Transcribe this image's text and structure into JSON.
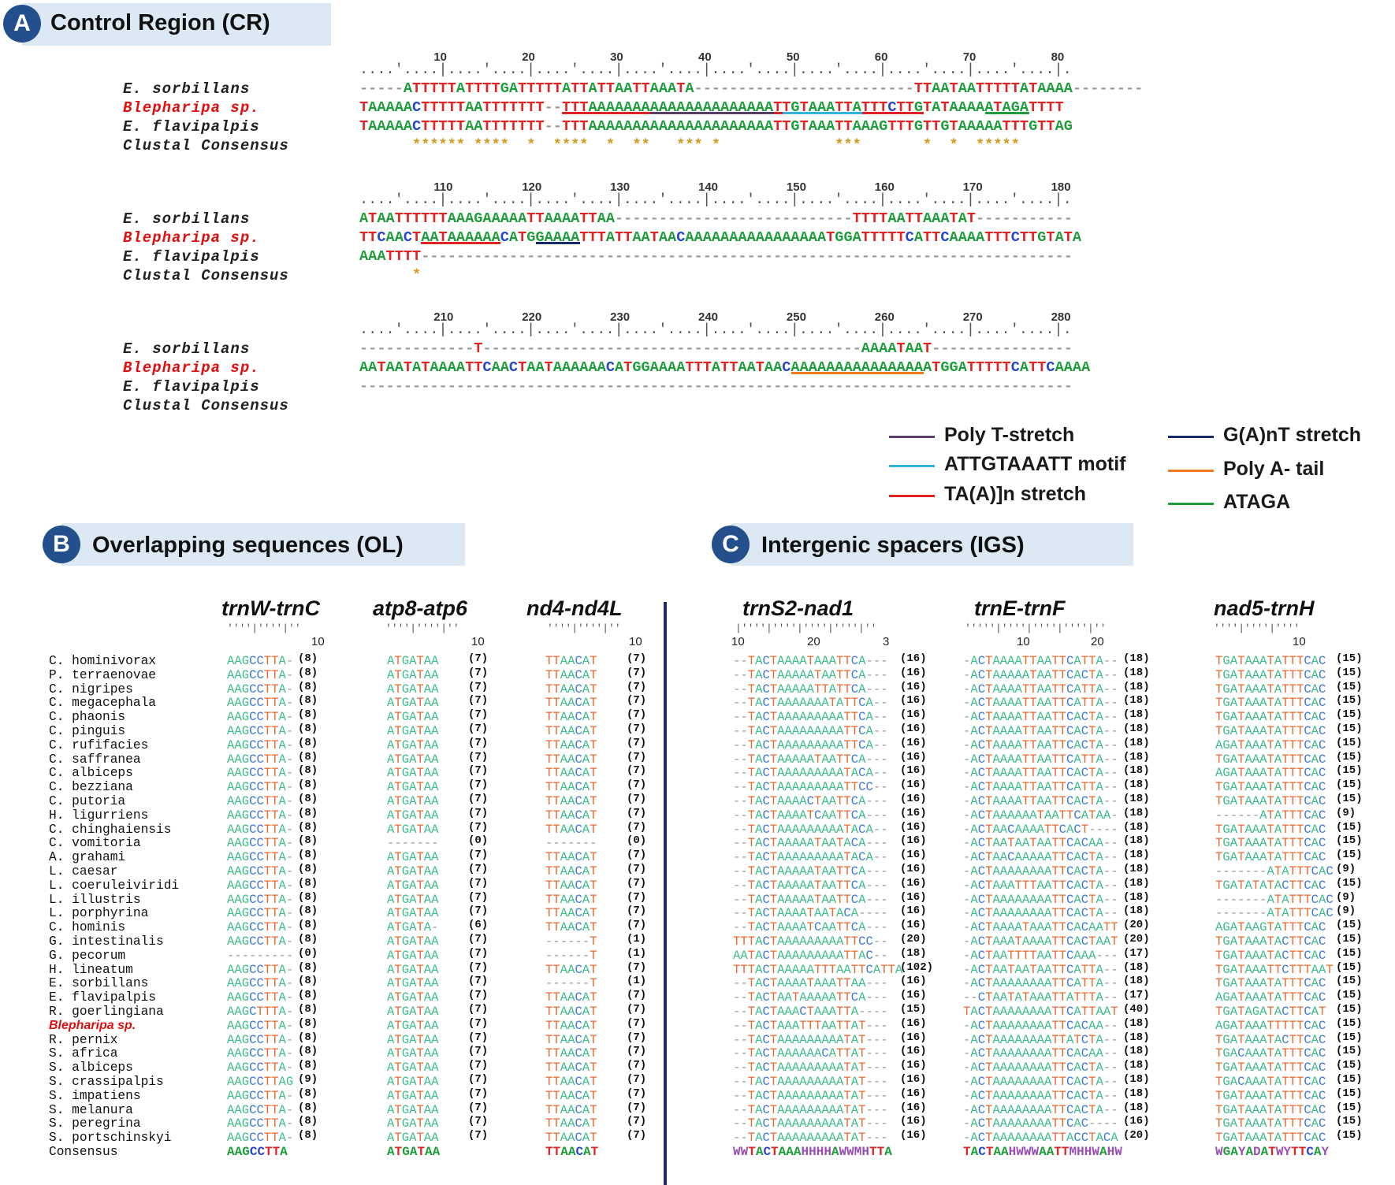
{
  "panelA": {
    "letter": "A",
    "title": "Control Region (CR)",
    "blocks": [
      {
        "ticks": [
          "10",
          "20",
          "30",
          "40",
          "50",
          "60",
          "70",
          "80"
        ],
        "rows": [
          {
            "name": "E. sorbillans",
            "seq": "-----ATTTTTATTTTGATTTTTATTATTAATTAAATA-------------------------TTAATAATTTTTATAAAA--------"
          },
          {
            "name": "Blepharipa sp.",
            "seq": "TAAAAACTTTTTAATTTTTTT--TTTAAAAAAAAAAAAAAAAAAAAATTGTAAATTATTTCTTGTATAAAAATAGATTTT"
          },
          {
            "name": "E. flavipalpis",
            "seq": "TAAAAACTTTTTAATTTTTTT--TTTAAAAAAAAAAAAAAAAAAAAATTGTAAATTAAAGTTTGTTGTAAAAATTTGTTAG"
          },
          {
            "name": "Clustal Consensus",
            "seq": "      ****** ****  *  ****  *  **   *** *             ***       *  *  *****      "
          }
        ]
      },
      {
        "ticks": [
          "110",
          "120",
          "130",
          "140",
          "150",
          "160",
          "170",
          "180"
        ],
        "rows": [
          {
            "name": "E. sorbillans",
            "seq": "ATAATTTTTTAAAGAAAAATTAAAATTAA---------------------------TTTTAATTAAATAT-----------"
          },
          {
            "name": "Blepharipa sp.",
            "seq": "TTCAACTAATAAAAAACATGGAAAATTTATTAATAACAAAAAAAAAAAAAAAATGGATTTTTCATTCAAAATTTCTTGTATA"
          },
          {
            "name": "E. flavipalpis",
            "seq": "AAATTTT--------------------------------------------------------------------------"
          },
          {
            "name": "Clustal Consensus",
            "seq": "      *                                                                          "
          }
        ]
      },
      {
        "ticks": [
          "210",
          "220",
          "230",
          "240",
          "250",
          "260",
          "270",
          "280"
        ],
        "rows": [
          {
            "name": "E. sorbillans",
            "seq": "-------------T-------------------------------------------AAAATAAT----------------"
          },
          {
            "name": "Blepharipa sp.",
            "seq": "AATAATATAAAATTCAACTAATAAAAAACATGGAAAATTTATTAATAACAAAAAAAAAAAAAAAATGGATTTTTCATTCAAAA"
          },
          {
            "name": "E. flavipalpis",
            "seq": "---------------------------------------------------------------------------------"
          },
          {
            "name": "Clustal Consensus",
            "seq": "                                                                                 "
          }
        ]
      }
    ],
    "legend": [
      {
        "label": "Poly T-stretch",
        "color": "#5a3f6e"
      },
      {
        "label": "ATTGTAAATT motif",
        "color": "#33b1e0"
      },
      {
        "label": "TA(A)]n stretch",
        "color": "#e02424"
      },
      {
        "label": "G(A)nT stretch",
        "color": "#1b2a6b"
      },
      {
        "label": "Poly A- tail",
        "color": "#f07b1e"
      },
      {
        "label": "ATAGA",
        "color": "#1e9e3a"
      }
    ]
  },
  "panelB": {
    "letter": "B",
    "title": "Overlapping sequences (OL)",
    "genes": [
      "trnW-trnC",
      "atp8-atp6",
      "nd4-nd4L"
    ],
    "tick": "10",
    "species": [
      "C. hominivorax",
      "P. terraenovae",
      "C. nigripes",
      "C. megacephala",
      "C. phaonis",
      "C. pinguis",
      "C. rufifacies",
      "C. saffranea",
      "C. albiceps",
      "C. bezziana",
      "C. putoria",
      "H. ligurriens",
      "C. chinghaiensis",
      "C. vomitoria",
      "A. grahami",
      "L. caesar",
      "L. coeruleiviridi",
      "L. illustris",
      "L. porphyrina",
      "C. hominis",
      "G. intestinalis",
      "G. pecorum",
      "H. lineatum",
      "E. sorbillans",
      "E. flavipalpis",
      "R. goerlingiana",
      "Blepharipa sp.",
      "R. pernix",
      "S. africa",
      "S. albiceps",
      "S. crassipalpis",
      "S. impatiens",
      "S. melanura",
      "S. peregrina",
      "S. portschinskyi"
    ],
    "consensus_label": "Consensus",
    "col1": {
      "seqs": [
        "AAGCCTTA-",
        "AAGCCTTA-",
        "AAGCCTTA-",
        "AAGCCTTA-",
        "AAGCCTTA-",
        "AAGCCTTA-",
        "AAGCCTTA-",
        "AAGCCTTA-",
        "AAGCCTTA-",
        "AAGCCTTA-",
        "AAGCCTTA-",
        "AAGCCTTA-",
        "AAGCCTTA-",
        "AAGCCTTA-",
        "AAGCCTTA-",
        "AAGCCTTA-",
        "AAGCCTTA-",
        "AAGCCTTA-",
        "AAGCCTTA-",
        "AAGCCTTA-",
        "AAGCCTTA-",
        "---------",
        "AAGCCTTA-",
        "AAGCCTTA-",
        "AAGCCTTA-",
        "AAGCTTTA-",
        "AAGCCTTA-",
        "AAGCCTTA-",
        "AAGCCTTA-",
        "AAGCCTTA-",
        "AAGCCTTAG",
        "AAGCCTTA-",
        "AAGCCTTA-",
        "AAGCCTTA-",
        "AAGCCTTA-"
      ],
      "lens": [
        "(8)",
        "(8)",
        "(8)",
        "(8)",
        "(8)",
        "(8)",
        "(8)",
        "(8)",
        "(8)",
        "(8)",
        "(8)",
        "(8)",
        "(8)",
        "(8)",
        "(8)",
        "(8)",
        "(8)",
        "(8)",
        "(8)",
        "(8)",
        "(8)",
        "(0)",
        "(8)",
        "(8)",
        "(8)",
        "(8)",
        "(8)",
        "(8)",
        "(8)",
        "(8)",
        "(9)",
        "(8)",
        "(8)",
        "(8)",
        "(8)"
      ],
      "consensus": "AAGCCTTA"
    },
    "col2": {
      "seqs": [
        "ATGATAA",
        "ATGATAA",
        "ATGATAA",
        "ATGATAA",
        "ATGATAA",
        "ATGATAA",
        "ATGATAA",
        "ATGATAA",
        "ATGATAA",
        "ATGATAA",
        "ATGATAA",
        "ATGATAA",
        "ATGATAA",
        "-------",
        "ATGATAA",
        "ATGATAA",
        "ATGATAA",
        "ATGATAA",
        "ATGATAA",
        "ATGATA-",
        "ATGATAA",
        "ATGATAA",
        "ATGATAA",
        "ATGATAA",
        "ATGATAA",
        "ATGATAA",
        "ATGATAA",
        "ATGATAA",
        "ATGATAA",
        "ATGATAA",
        "ATGATAA",
        "ATGATAA",
        "ATGATAA",
        "ATGATAA",
        "ATGATAA"
      ],
      "lens": [
        "(7)",
        "(7)",
        "(7)",
        "(7)",
        "(7)",
        "(7)",
        "(7)",
        "(7)",
        "(7)",
        "(7)",
        "(7)",
        "(7)",
        "(7)",
        "(0)",
        "(7)",
        "(7)",
        "(7)",
        "(7)",
        "(7)",
        "(6)",
        "(7)",
        "(7)",
        "(7)",
        "(7)",
        "(7)",
        "(7)",
        "(7)",
        "(7)",
        "(7)",
        "(7)",
        "(7)",
        "(7)",
        "(7)",
        "(7)",
        "(7)"
      ],
      "consensus": "ATGATAA"
    },
    "col3": {
      "seqs": [
        "TTAACAT",
        "TTAACAT",
        "TTAACAT",
        "TTAACAT",
        "TTAACAT",
        "TTAACAT",
        "TTAACAT",
        "TTAACAT",
        "TTAACAT",
        "TTAACAT",
        "TTAACAT",
        "TTAACAT",
        "TTAACAT",
        "-------",
        "TTAACAT",
        "TTAACAT",
        "TTAACAT",
        "TTAACAT",
        "TTAACAT",
        "TTAACAT",
        "------T",
        "------T",
        "TTAACAT",
        "------T",
        "TTAACAT",
        "TTAACAT",
        "TTAACAT",
        "TTAACAT",
        "TTAACAT",
        "TTAACAT",
        "TTAACAT",
        "TTAACAT",
        "TTAACAT",
        "TTAACAT",
        "TTAACAT"
      ],
      "lens": [
        "(7)",
        "(7)",
        "(7)",
        "(7)",
        "(7)",
        "(7)",
        "(7)",
        "(7)",
        "(7)",
        "(7)",
        "(7)",
        "(7)",
        "(7)",
        "(0)",
        "(7)",
        "(7)",
        "(7)",
        "(7)",
        "(7)",
        "(7)",
        "(1)",
        "(1)",
        "(7)",
        "(1)",
        "(7)",
        "(7)",
        "(7)",
        "(7)",
        "(7)",
        "(7)",
        "(7)",
        "(7)",
        "(7)",
        "(7)",
        "(7)"
      ],
      "consensus": "TTAACAT"
    }
  },
  "panelC": {
    "letter": "C",
    "title": "Intergenic spacers (IGS)",
    "genes": [
      "trnS2-nad1",
      "trnE-trnF",
      "nad5-trnH"
    ],
    "ticks1": [
      "10",
      "20",
      "3"
    ],
    "ticks2": [
      "10",
      "20"
    ],
    "ticks3": [
      "10"
    ],
    "col1": {
      "seqs": [
        "--TACTAAAATAAATTCA---",
        "--TACTAAAAATAATTCA---",
        "--TACTAAAAATTATTCA---",
        "--TACTAAAAAAATATTCA--",
        "--TACTAAAAAAAAATTCA--",
        "--TACTAAAAAAAAATTCA--",
        "--TACTAAAAAAAAATTCA--",
        "--TACTAAAAATAATTCA---",
        "--TACTAAAAAAAAATACA--",
        "--TACTAAAAAAAAATTCC--",
        "--TACTAAAACTAATTCA---",
        "--TACTAAAATCAATTCA---",
        "--TACTAAAAAAAAATACA--",
        "--TACTAAAAATAATACA---",
        "--TACTAAAAAAAAATACA--",
        "--TACTAAAAATAATTCA---",
        "--TACTAAAAATAATTCA---",
        "--TACTAAAAATAATTCA---",
        "--TACTAAAATAATACA----",
        "--TACTAAAATCAATTCA---",
        "TTTACTAAAAAAAAATTCC--",
        "AATACTAAAAAAAAATTAC--",
        "TTTACTAAAAATTTAATTCATTA",
        "--TACTAAAATAAATTAA---",
        "--TACTAATAAAAATTCA---",
        "--TACTAAACTAAATTA----",
        "--TACTAAATTTAATTAT---",
        "--TACTAAAAAAAAATAT---",
        "--TACTAAAAAACATTAT---",
        "--TACTAAAAAAAAATAT---",
        "--TACTAAAAAAAAATAT---",
        "--TACTAAAAAAAAATAT---",
        "--TACTAAAAAAAAATAT---",
        "--TACTAAAAAAAAATAT---",
        "--TACTAAAAAAAAATAT---"
      ],
      "lens": [
        "(16)",
        "(16)",
        "(16)",
        "(16)",
        "(16)",
        "(16)",
        "(16)",
        "(16)",
        "(16)",
        "(16)",
        "(16)",
        "(16)",
        "(16)",
        "(16)",
        "(16)",
        "(16)",
        "(16)",
        "(16)",
        "(16)",
        "(16)",
        "(20)",
        "(18)",
        "(102)",
        "(16)",
        "(16)",
        "(15)",
        "(16)",
        "(16)",
        "(16)",
        "(16)",
        "(16)",
        "(16)",
        "(16)",
        "(16)",
        "(16)"
      ],
      "consensus": "WWTACTAAAHHHHAWWMHTTA"
    },
    "col2": {
      "seqs": [
        "-ACTAAAATTAATTCATTA--",
        "-ACTAAAAATAATTCACTA--",
        "-ACTAAAATTAATTCATTA--",
        "-ACTAAAATTAATTCATTA--",
        "-ACTAAAATTAATTCACTA--",
        "-ACTAAAATTAATTCACTA--",
        "-ACTAAAATTAATTCACTA--",
        "-ACTAAAATTAATTCATTA--",
        "-ACTAAAATTAATTCACTA--",
        "-ACTAAAATTAATTCATTA--",
        "-ACTAAAATTAATTCACTA--",
        "-ACTAAAAAATAATTCATAA-",
        "-ACTAACAAAATTCACT----",
        "-ACTAATAATAATTCACAA--",
        "-ACTAACAAAAATTCACTA--",
        "-ACTAAAAAAAATTCACTA--",
        "-ACTAAATTTAATTCACTA--",
        "-ACTAAAAAAAATTCACTA--",
        "-ACTAAAAAAAATTCACTA--",
        "-ACTAAAATAAATTCACAATT",
        "-ACTAAATAAAATTCACTAAT",
        "-ACTAATTTTAATTCAAA---",
        "-ACTAATAATAATTCATTA--",
        "-ACTAAAAAAAATTCATTA--",
        "--CTAATATAAATTATTTA--",
        "TACTAAAAAAAATTCATTAAT",
        "-ACTAAAAAAAATTCACAA--",
        "-ACTAAAAAAAATTATCTA--",
        "-ACTAAAAAAAATTCACAA--",
        "-ACTAAAAAAAATTCACTA--",
        "-ACTAAAAAAAATTCACTA--",
        "-ACTAAAAAAAATTCACTA--",
        "-ACTAAAAAAAATTCACTA--",
        "-ACTAAAAAAAATTCAC----",
        "-ACTAAAAAAAATTACCTACA"
      ],
      "lens": [
        "(18)",
        "(18)",
        "(18)",
        "(18)",
        "(18)",
        "(18)",
        "(18)",
        "(18)",
        "(18)",
        "(18)",
        "(18)",
        "(18)",
        "(18)",
        "(18)",
        "(18)",
        "(18)",
        "(18)",
        "(18)",
        "(18)",
        "(20)",
        "(20)",
        "(17)",
        "(18)",
        "(18)",
        "(17)",
        "(40)",
        "(18)",
        "(18)",
        "(18)",
        "(18)",
        "(18)",
        "(18)",
        "(18)",
        "(16)",
        "(20)"
      ],
      "consensus": "TACTAAHWWWAATTMHHWAHW"
    },
    "col3": {
      "seqs": [
        "TGATAAATATTTCAC",
        "TGATAAATATTTCAC",
        "TGATAAATATTTCAC",
        "TGATAAATATTTCAC",
        "TGATAAATATTTCAC",
        "TGATAAATATTTCAC",
        "AGATAAATATTTCAC",
        "TGATAAATATTTCAC",
        "AGATAAATATTTCAC",
        "TGATAAATATTTCAC",
        "TGATAAATATTTCAC",
        "------ATATTTCAC",
        "TGATAAATATTTCAC",
        "TGATAAATATTTCAC",
        "TGATAAATATTTCAC",
        "-------ATATTTCAC",
        "TGATATATACTTCAC",
        "-------ATATTTCAC",
        "-------ATATTTCAC",
        "AGATAAGTATTTCAC",
        "TGATAAATACTTCAC",
        "TGATAAATACTTCAC",
        "TGATAAATTCTTTAAT",
        "TGATAAATATTTCAC",
        "AGATAAATATTTCAC",
        "TGATAGATACTTCAT",
        "AGATAAATTTTTCAC",
        "TGATAAATACTTCAC",
        "TGACAAATATTTCAC",
        "TGATAAATATTTCAC",
        "TGACAAATATTTCAC",
        "TGATAAATATTTCAC",
        "TGATAAATATTTCAC",
        "TGATAAATATTTCAC",
        "TGATAAATATTTCAC"
      ],
      "lens": [
        "(15)",
        "(15)",
        "(15)",
        "(15)",
        "(15)",
        "(15)",
        "(15)",
        "(15)",
        "(15)",
        "(15)",
        "(15)",
        "(9)",
        "(15)",
        "(15)",
        "(15)",
        "(9)",
        "(15)",
        "(9)",
        "(9)",
        "(15)",
        "(15)",
        "(15)",
        "(15)",
        "(15)",
        "(15)",
        "(15)",
        "(15)",
        "(15)",
        "(15)",
        "(15)",
        "(15)",
        "(15)",
        "(15)",
        "(15)",
        "(15)"
      ],
      "consensus": "WGAYADATWYTTCAY"
    }
  },
  "colors": {
    "A": "#1e9e3a",
    "T": "#e02424",
    "C": "#2846c8",
    "G": "#1e9e3a",
    "gap": "#888888",
    "softA": "#3dbd8a",
    "softT": "#e8692e",
    "softC": "#3d77d6",
    "softG": "#3dbd8a",
    "ambig": "#9b4fb5",
    "blepharipa": "#e01010",
    "accent": "#234f8c"
  }
}
